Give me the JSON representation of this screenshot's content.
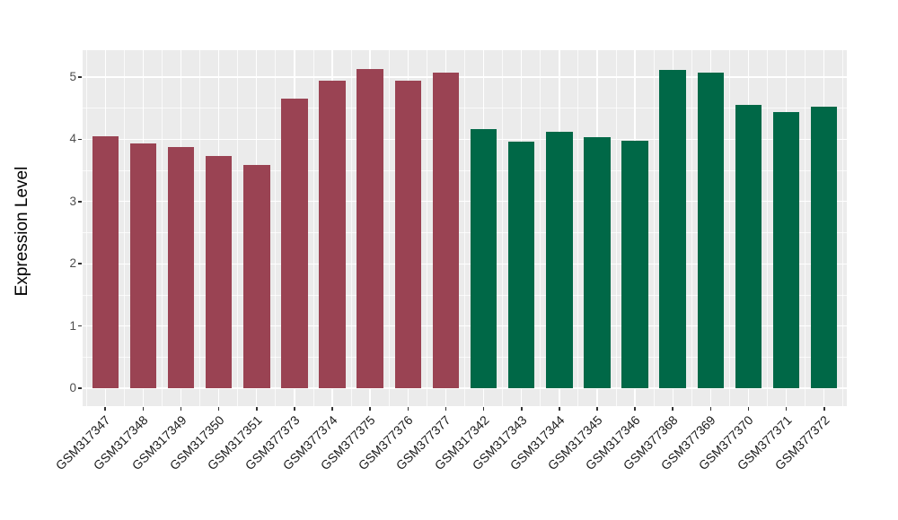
{
  "chart_data": {
    "type": "bar",
    "title": "",
    "xlabel": "",
    "ylabel": "Expression Level",
    "ylim": [
      -0.28,
      5.38
    ],
    "yticks": [
      0,
      1,
      2,
      3,
      4,
      5
    ],
    "grid": "on",
    "legend": "none",
    "panel_background": "#EBEBEB",
    "gridline_color": "#FFFFFF",
    "categories": [
      "GSM317347",
      "GSM317348",
      "GSM317349",
      "GSM317350",
      "GSM317351",
      "GSM377373",
      "GSM377374",
      "GSM377375",
      "GSM377376",
      "GSM377377",
      "GSM317342",
      "GSM317343",
      "GSM317344",
      "GSM317345",
      "GSM317346",
      "GSM377368",
      "GSM377369",
      "GSM377370",
      "GSM377371",
      "GSM377372"
    ],
    "values": [
      4.05,
      3.93,
      3.88,
      3.73,
      3.59,
      4.66,
      4.94,
      5.13,
      4.94,
      5.07,
      4.17,
      3.96,
      4.12,
      4.03,
      3.97,
      5.11,
      5.07,
      4.55,
      4.44,
      4.53
    ],
    "bar_groups": [
      "group1",
      "group1",
      "group1",
      "group1",
      "group1",
      "group1",
      "group1",
      "group1",
      "group1",
      "group1",
      "group2",
      "group2",
      "group2",
      "group2",
      "group2",
      "group2",
      "group2",
      "group2",
      "group2",
      "group2"
    ],
    "group_colors": {
      "group1": "#9A4353",
      "group2": "#006847"
    }
  }
}
